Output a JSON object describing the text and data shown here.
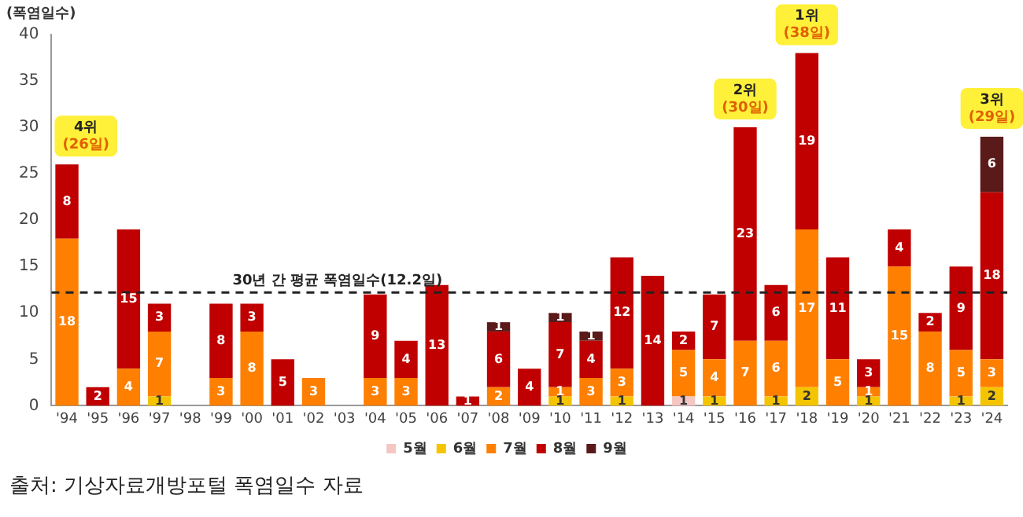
{
  "chart_data": {
    "type": "bar",
    "stacked": true,
    "ylabel": "(폭염일수)",
    "categories": [
      "'94",
      "'95",
      "'96",
      "'97",
      "'98",
      "'99",
      "'00",
      "'01",
      "'02",
      "'03",
      "'04",
      "'05",
      "'06",
      "'07",
      "'08",
      "'09",
      "'10",
      "'11",
      "'12",
      "'13",
      "'14",
      "'15",
      "'16",
      "'17",
      "'18",
      "'19",
      "'20",
      "'21",
      "'22",
      "'23",
      "'24"
    ],
    "series": [
      {
        "name": "5월",
        "color": "#f4c7c3",
        "values": [
          null,
          null,
          null,
          null,
          null,
          null,
          null,
          null,
          null,
          null,
          null,
          null,
          null,
          null,
          null,
          null,
          null,
          null,
          null,
          null,
          1,
          null,
          null,
          null,
          null,
          null,
          null,
          null,
          null,
          null,
          null
        ]
      },
      {
        "name": "6월",
        "color": "#f5c400",
        "values": [
          null,
          null,
          null,
          1,
          null,
          null,
          null,
          null,
          null,
          null,
          null,
          null,
          null,
          null,
          null,
          null,
          1,
          null,
          1,
          null,
          null,
          1,
          null,
          1,
          2,
          null,
          1,
          null,
          null,
          1,
          2
        ]
      },
      {
        "name": "7월",
        "color": "#ff7f00",
        "values": [
          18,
          null,
          4,
          7,
          null,
          3,
          8,
          null,
          3,
          null,
          3,
          3,
          null,
          null,
          2,
          null,
          1,
          3,
          3,
          null,
          5,
          4,
          7,
          6,
          17,
          5,
          1,
          15,
          8,
          5,
          3
        ]
      },
      {
        "name": "8월",
        "color": "#c00000",
        "values": [
          8,
          2,
          15,
          3,
          null,
          8,
          3,
          5,
          null,
          null,
          9,
          4,
          13,
          1,
          6,
          4,
          7,
          4,
          12,
          14,
          2,
          7,
          23,
          6,
          19,
          11,
          3,
          4,
          2,
          9,
          18
        ]
      },
      {
        "name": "9월",
        "color": "#5a1a1a",
        "values": [
          null,
          null,
          null,
          null,
          null,
          null,
          null,
          null,
          null,
          null,
          null,
          null,
          null,
          null,
          1,
          null,
          1,
          1,
          null,
          null,
          null,
          null,
          null,
          null,
          null,
          null,
          null,
          null,
          null,
          null,
          6
        ]
      }
    ],
    "data_labels": true,
    "ylim": [
      0,
      40
    ],
    "yticks": [
      0,
      5,
      10,
      15,
      20,
      25,
      30,
      35,
      40
    ],
    "grid": false,
    "legend": "bottom",
    "ref_lines": [
      {
        "axis": "y",
        "value": 12.2,
        "label": "30년 간 평균 폭염일수(12.2일)",
        "color": "#222222",
        "line_style": "dashed"
      }
    ],
    "annotations": [
      {
        "text": "4위\n(26일)",
        "x": "'94",
        "y": 26
      },
      {
        "text": "2위\n(30일)",
        "x": "'16",
        "y": 30
      },
      {
        "text": "1위\n(38일)",
        "x": "'18",
        "y": 38
      },
      {
        "text": "3위\n(29일)",
        "x": "'24",
        "y": 29
      },
      "출처: 기상자료개방포털 폭염일수 자료"
    ]
  }
}
